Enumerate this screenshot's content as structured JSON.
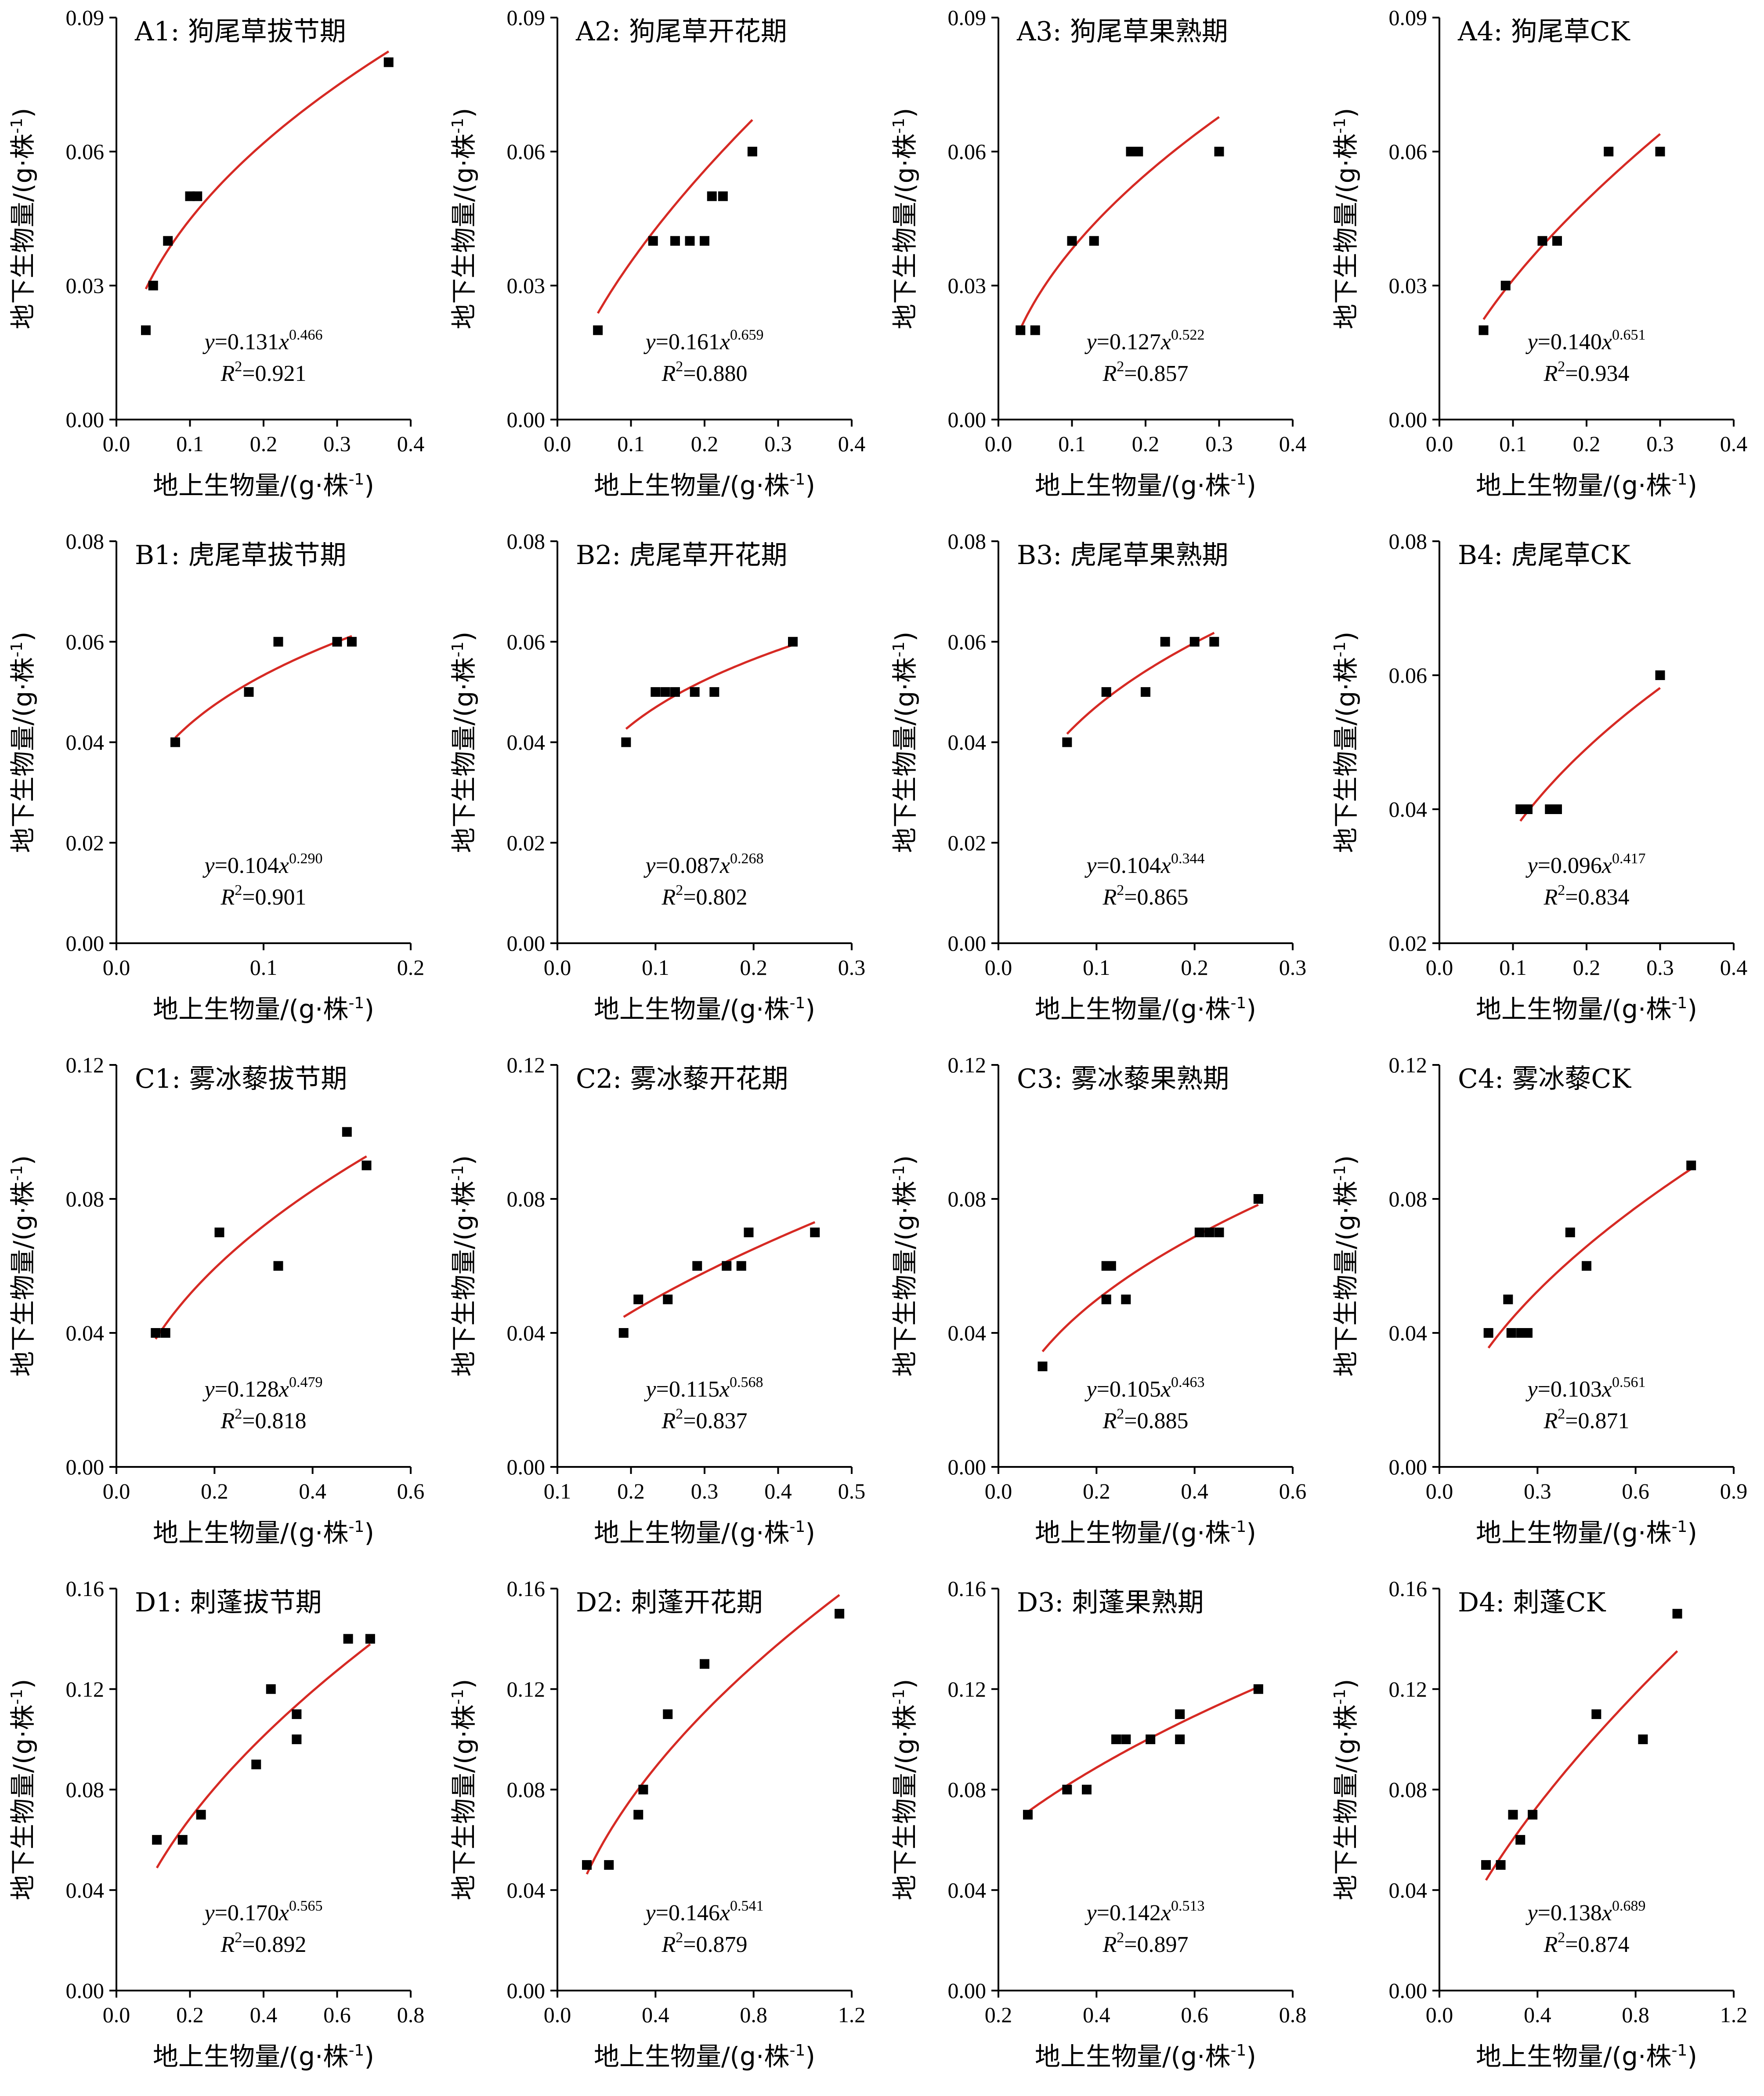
{
  "axis_titles": {
    "x": "地上生物量/(g·株",
    "x_sup": "-1",
    "x_tail": ")",
    "y": "地下生物量/(g·株",
    "y_sup": "-1",
    "y_tail": ")"
  },
  "colors": {
    "fit": "#d62a24",
    "points": "#000000"
  },
  "chart_data": [
    {
      "id": "A1",
      "type": "scatter",
      "title": "A1: 狗尾草拔节期",
      "xlim": [
        0,
        0.4
      ],
      "xticks": [
        "0.0",
        "0.1",
        "0.2",
        "0.3",
        "0.4"
      ],
      "ylim": [
        0,
        0.09
      ],
      "yticks": [
        "0.00",
        "0.03",
        "0.06",
        "0.09"
      ],
      "points": [
        [
          0.04,
          0.02
        ],
        [
          0.05,
          0.03
        ],
        [
          0.07,
          0.04
        ],
        [
          0.1,
          0.05
        ],
        [
          0.11,
          0.05
        ],
        [
          0.37,
          0.08
        ]
      ],
      "fit": {
        "a": 0.131,
        "b": 0.466,
        "x_range": [
          0.04,
          0.37
        ]
      },
      "eq_coef": "0.131",
      "eq_exp": "0.466",
      "r2": "0.921"
    },
    {
      "id": "A2",
      "type": "scatter",
      "title": "A2: 狗尾草开花期",
      "xlim": [
        0,
        0.4
      ],
      "xticks": [
        "0.0",
        "0.1",
        "0.2",
        "0.3",
        "0.4"
      ],
      "ylim": [
        0,
        0.09
      ],
      "yticks": [
        "0.00",
        "0.03",
        "0.06",
        "0.09"
      ],
      "points": [
        [
          0.055,
          0.02
        ],
        [
          0.13,
          0.04
        ],
        [
          0.16,
          0.04
        ],
        [
          0.18,
          0.04
        ],
        [
          0.2,
          0.04
        ],
        [
          0.21,
          0.05
        ],
        [
          0.225,
          0.05
        ],
        [
          0.265,
          0.06
        ]
      ],
      "fit": {
        "a": 0.161,
        "b": 0.659,
        "x_range": [
          0.055,
          0.265
        ]
      },
      "eq_coef": "0.161",
      "eq_exp": "0.659",
      "r2": "0.880"
    },
    {
      "id": "A3",
      "type": "scatter",
      "title": "A3: 狗尾草果熟期",
      "xlim": [
        0,
        0.4
      ],
      "xticks": [
        "0.0",
        "0.1",
        "0.2",
        "0.3",
        "0.4"
      ],
      "ylim": [
        0,
        0.09
      ],
      "yticks": [
        "0.00",
        "0.03",
        "0.06",
        "0.09"
      ],
      "points": [
        [
          0.03,
          0.02
        ],
        [
          0.05,
          0.02
        ],
        [
          0.1,
          0.04
        ],
        [
          0.13,
          0.04
        ],
        [
          0.18,
          0.06
        ],
        [
          0.19,
          0.06
        ],
        [
          0.3,
          0.06
        ]
      ],
      "fit": {
        "a": 0.127,
        "b": 0.522,
        "x_range": [
          0.03,
          0.3
        ]
      },
      "eq_coef": "0.127",
      "eq_exp": "0.522",
      "r2": "0.857"
    },
    {
      "id": "A4",
      "type": "scatter",
      "title": "A4: 狗尾草CK",
      "xlim": [
        0,
        0.4
      ],
      "xticks": [
        "0.0",
        "0.1",
        "0.2",
        "0.3",
        "0.4"
      ],
      "ylim": [
        0,
        0.09
      ],
      "yticks": [
        "0.00",
        "0.03",
        "0.06",
        "0.09"
      ],
      "points": [
        [
          0.06,
          0.02
        ],
        [
          0.09,
          0.03
        ],
        [
          0.14,
          0.04
        ],
        [
          0.16,
          0.04
        ],
        [
          0.23,
          0.06
        ],
        [
          0.3,
          0.06
        ]
      ],
      "fit": {
        "a": 0.14,
        "b": 0.651,
        "x_range": [
          0.06,
          0.3
        ]
      },
      "eq_coef": "0.140",
      "eq_exp": "0.651",
      "r2": "0.934"
    },
    {
      "id": "B1",
      "type": "scatter",
      "title": "B1: 虎尾草拔节期",
      "xlim": [
        0,
        0.2
      ],
      "xticks": [
        "0.0",
        "0.1",
        "0.2"
      ],
      "ylim": [
        0,
        0.08
      ],
      "yticks": [
        "0.00",
        "0.02",
        "0.04",
        "0.06",
        "0.08"
      ],
      "points": [
        [
          0.04,
          0.04
        ],
        [
          0.09,
          0.05
        ],
        [
          0.11,
          0.06
        ],
        [
          0.15,
          0.06
        ],
        [
          0.16,
          0.06
        ]
      ],
      "fit": {
        "a": 0.104,
        "b": 0.29,
        "x_range": [
          0.04,
          0.16
        ]
      },
      "eq_coef": "0.104",
      "eq_exp": "0.290",
      "r2": "0.901"
    },
    {
      "id": "B2",
      "type": "scatter",
      "title": "B2: 虎尾草开花期",
      "xlim": [
        0,
        0.3
      ],
      "xticks": [
        "0.0",
        "0.1",
        "0.2",
        "0.3"
      ],
      "ylim": [
        0,
        0.08
      ],
      "yticks": [
        "0.00",
        "0.02",
        "0.04",
        "0.06",
        "0.08"
      ],
      "points": [
        [
          0.07,
          0.04
        ],
        [
          0.1,
          0.05
        ],
        [
          0.11,
          0.05
        ],
        [
          0.12,
          0.05
        ],
        [
          0.14,
          0.05
        ],
        [
          0.16,
          0.05
        ],
        [
          0.24,
          0.06
        ]
      ],
      "fit": {
        "a": 0.087,
        "b": 0.268,
        "x_range": [
          0.07,
          0.24
        ]
      },
      "eq_coef": "0.087",
      "eq_exp": "0.268",
      "r2": "0.802"
    },
    {
      "id": "B3",
      "type": "scatter",
      "title": "B3: 虎尾草果熟期",
      "xlim": [
        0,
        0.3
      ],
      "xticks": [
        "0.0",
        "0.1",
        "0.2",
        "0.3"
      ],
      "ylim": [
        0,
        0.08
      ],
      "yticks": [
        "0.00",
        "0.02",
        "0.04",
        "0.06",
        "0.08"
      ],
      "points": [
        [
          0.07,
          0.04
        ],
        [
          0.11,
          0.05
        ],
        [
          0.15,
          0.05
        ],
        [
          0.17,
          0.06
        ],
        [
          0.2,
          0.06
        ],
        [
          0.22,
          0.06
        ]
      ],
      "fit": {
        "a": 0.104,
        "b": 0.344,
        "x_range": [
          0.07,
          0.22
        ]
      },
      "eq_coef": "0.104",
      "eq_exp": "0.344",
      "r2": "0.865"
    },
    {
      "id": "B4",
      "type": "scatter",
      "title": "B4: 虎尾草CK",
      "xlim": [
        0,
        0.4
      ],
      "xticks": [
        "0.0",
        "0.1",
        "0.2",
        "0.3",
        "0.4"
      ],
      "ylim": [
        0.02,
        0.08
      ],
      "yticks": [
        "0.02",
        "0.04",
        "0.06",
        "0.08"
      ],
      "points": [
        [
          0.11,
          0.04
        ],
        [
          0.12,
          0.04
        ],
        [
          0.15,
          0.04
        ],
        [
          0.16,
          0.04
        ],
        [
          0.3,
          0.06
        ]
      ],
      "fit": {
        "a": 0.096,
        "b": 0.417,
        "x_range": [
          0.11,
          0.3
        ]
      },
      "eq_coef": "0.096",
      "eq_exp": "0.417",
      "r2": "0.834"
    },
    {
      "id": "C1",
      "type": "scatter",
      "title": "C1: 雾冰藜拔节期",
      "xlim": [
        0,
        0.6
      ],
      "xticks": [
        "0.0",
        "0.2",
        "0.4",
        "0.6"
      ],
      "ylim": [
        0,
        0.12
      ],
      "yticks": [
        "0.00",
        "0.04",
        "0.08",
        "0.12"
      ],
      "points": [
        [
          0.08,
          0.04
        ],
        [
          0.1,
          0.04
        ],
        [
          0.21,
          0.07
        ],
        [
          0.33,
          0.06
        ],
        [
          0.47,
          0.1
        ],
        [
          0.51,
          0.09
        ]
      ],
      "fit": {
        "a": 0.128,
        "b": 0.479,
        "x_range": [
          0.08,
          0.51
        ]
      },
      "eq_coef": "0.128",
      "eq_exp": "0.479",
      "r2": "0.818"
    },
    {
      "id": "C2",
      "type": "scatter",
      "title": "C2: 雾冰藜开花期",
      "xlim": [
        0.1,
        0.5
      ],
      "xticks": [
        "0.1",
        "0.2",
        "0.3",
        "0.4",
        "0.5"
      ],
      "ylim": [
        0,
        0.12
      ],
      "yticks": [
        "0.00",
        "0.04",
        "0.08",
        "0.12"
      ],
      "points": [
        [
          0.19,
          0.04
        ],
        [
          0.21,
          0.05
        ],
        [
          0.25,
          0.05
        ],
        [
          0.29,
          0.06
        ],
        [
          0.33,
          0.06
        ],
        [
          0.35,
          0.06
        ],
        [
          0.36,
          0.07
        ],
        [
          0.45,
          0.07
        ]
      ],
      "fit": {
        "a": 0.115,
        "b": 0.568,
        "x_range": [
          0.19,
          0.45
        ]
      },
      "eq_coef": "0.115",
      "eq_exp": "0.568",
      "r2": "0.837"
    },
    {
      "id": "C3",
      "type": "scatter",
      "title": "C3: 雾冰藜果熟期",
      "xlim": [
        0,
        0.6
      ],
      "xticks": [
        "0.0",
        "0.2",
        "0.4",
        "0.6"
      ],
      "ylim": [
        0,
        0.12
      ],
      "yticks": [
        "0.00",
        "0.04",
        "0.08",
        "0.12"
      ],
      "points": [
        [
          0.09,
          0.03
        ],
        [
          0.22,
          0.05
        ],
        [
          0.22,
          0.06
        ],
        [
          0.23,
          0.06
        ],
        [
          0.26,
          0.05
        ],
        [
          0.41,
          0.07
        ],
        [
          0.43,
          0.07
        ],
        [
          0.45,
          0.07
        ],
        [
          0.53,
          0.08
        ]
      ],
      "fit": {
        "a": 0.105,
        "b": 0.463,
        "x_range": [
          0.09,
          0.53
        ]
      },
      "eq_coef": "0.105",
      "eq_exp": "0.463",
      "r2": "0.885"
    },
    {
      "id": "C4",
      "type": "scatter",
      "title": "C4: 雾冰藜CK",
      "xlim": [
        0,
        0.9
      ],
      "xticks": [
        "0.0",
        "0.3",
        "0.6",
        "0.9"
      ],
      "ylim": [
        0,
        0.12
      ],
      "yticks": [
        "0.00",
        "0.04",
        "0.08",
        "0.12"
      ],
      "points": [
        [
          0.15,
          0.04
        ],
        [
          0.21,
          0.05
        ],
        [
          0.22,
          0.04
        ],
        [
          0.25,
          0.04
        ],
        [
          0.27,
          0.04
        ],
        [
          0.4,
          0.07
        ],
        [
          0.45,
          0.06
        ],
        [
          0.77,
          0.09
        ]
      ],
      "fit": {
        "a": 0.103,
        "b": 0.561,
        "x_range": [
          0.15,
          0.77
        ]
      },
      "eq_coef": "0.103",
      "eq_exp": "0.561",
      "r2": "0.871"
    },
    {
      "id": "D1",
      "type": "scatter",
      "title": "D1: 刺蓬拔节期",
      "xlim": [
        0,
        0.8
      ],
      "xticks": [
        "0.0",
        "0.2",
        "0.4",
        "0.6",
        "0.8"
      ],
      "ylim": [
        0,
        0.16
      ],
      "yticks": [
        "0.00",
        "0.04",
        "0.08",
        "0.12",
        "0.16"
      ],
      "points": [
        [
          0.11,
          0.06
        ],
        [
          0.18,
          0.06
        ],
        [
          0.23,
          0.07
        ],
        [
          0.38,
          0.09
        ],
        [
          0.42,
          0.12
        ],
        [
          0.49,
          0.1
        ],
        [
          0.49,
          0.11
        ],
        [
          0.63,
          0.14
        ],
        [
          0.69,
          0.14
        ]
      ],
      "fit": {
        "a": 0.17,
        "b": 0.565,
        "x_range": [
          0.11,
          0.69
        ]
      },
      "eq_coef": "0.170",
      "eq_exp": "0.565",
      "r2": "0.892"
    },
    {
      "id": "D2",
      "type": "scatter",
      "title": "D2: 刺蓬开花期",
      "xlim": [
        0,
        1.2
      ],
      "xticks": [
        "0.0",
        "0.4",
        "0.8",
        "1.2"
      ],
      "ylim": [
        0,
        0.16
      ],
      "yticks": [
        "0.00",
        "0.04",
        "0.08",
        "0.12",
        "0.16"
      ],
      "points": [
        [
          0.12,
          0.05
        ],
        [
          0.21,
          0.05
        ],
        [
          0.33,
          0.07
        ],
        [
          0.35,
          0.08
        ],
        [
          0.45,
          0.11
        ],
        [
          0.6,
          0.13
        ],
        [
          1.15,
          0.15
        ]
      ],
      "fit": {
        "a": 0.146,
        "b": 0.541,
        "x_range": [
          0.12,
          1.15
        ]
      },
      "eq_coef": "0.146",
      "eq_exp": "0.541",
      "r2": "0.879"
    },
    {
      "id": "D3",
      "type": "scatter",
      "title": "D3: 刺蓬果熟期",
      "xlim": [
        0.2,
        0.8
      ],
      "xticks": [
        "0.2",
        "0.4",
        "0.6",
        "0.8"
      ],
      "ylim": [
        0,
        0.16
      ],
      "yticks": [
        "0.00",
        "0.04",
        "0.08",
        "0.12",
        "0.16"
      ],
      "points": [
        [
          0.26,
          0.07
        ],
        [
          0.34,
          0.08
        ],
        [
          0.38,
          0.08
        ],
        [
          0.44,
          0.1
        ],
        [
          0.46,
          0.1
        ],
        [
          0.51,
          0.1
        ],
        [
          0.57,
          0.1
        ],
        [
          0.57,
          0.11
        ],
        [
          0.73,
          0.12
        ]
      ],
      "fit": {
        "a": 0.142,
        "b": 0.513,
        "x_range": [
          0.26,
          0.73
        ]
      },
      "eq_coef": "0.142",
      "eq_exp": "0.513",
      "r2": "0.897"
    },
    {
      "id": "D4",
      "type": "scatter",
      "title": "D4: 刺蓬CK",
      "xlim": [
        0,
        1.2
      ],
      "xticks": [
        "0.0",
        "0.4",
        "0.8",
        "1.2"
      ],
      "ylim": [
        0,
        0.16
      ],
      "yticks": [
        "0.00",
        "0.04",
        "0.08",
        "0.12",
        "0.16"
      ],
      "points": [
        [
          0.19,
          0.05
        ],
        [
          0.25,
          0.05
        ],
        [
          0.3,
          0.07
        ],
        [
          0.33,
          0.06
        ],
        [
          0.38,
          0.07
        ],
        [
          0.64,
          0.11
        ],
        [
          0.83,
          0.1
        ],
        [
          0.97,
          0.15
        ]
      ],
      "fit": {
        "a": 0.138,
        "b": 0.689,
        "x_range": [
          0.19,
          0.97
        ]
      },
      "eq_coef": "0.138",
      "eq_exp": "0.689",
      "r2": "0.874"
    }
  ]
}
